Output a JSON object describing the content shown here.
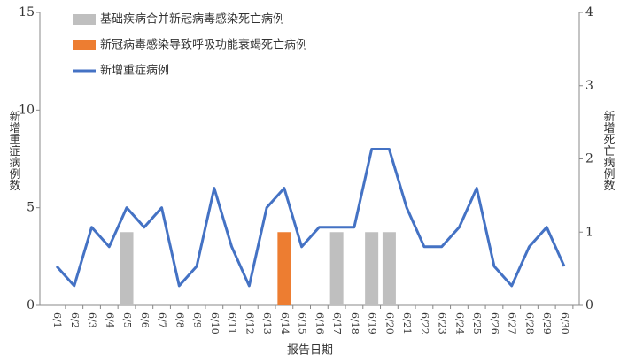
{
  "chart_data": {
    "type": "bar-line",
    "xlabel": "报告日期",
    "ylabel": "新增重症病例数",
    "y2label": "新增死亡病例数",
    "categories": [
      "6/1",
      "6/2",
      "6/3",
      "6/4",
      "6/5",
      "6/6",
      "6/7",
      "6/8",
      "6/9",
      "6/10",
      "6/11",
      "6/12",
      "6/13",
      "6/14",
      "6/15",
      "6/16",
      "6/17",
      "6/18",
      "6/19",
      "6/20",
      "6/21",
      "6/22",
      "6/23",
      "6/24",
      "6/25",
      "6/26",
      "6/27",
      "6/28",
      "6/29",
      "6/30"
    ],
    "series": [
      {
        "name": "基础疾病合并新冠病毒感染死亡病例",
        "type": "bar",
        "axis": "y2",
        "color": "#bfbfbf",
        "values": [
          0,
          0,
          0,
          0,
          1,
          0,
          0,
          0,
          0,
          0,
          0,
          0,
          0,
          0,
          0,
          0,
          1,
          0,
          1,
          1,
          0,
          0,
          0,
          0,
          0,
          0,
          0,
          0,
          0,
          0
        ]
      },
      {
        "name": "新冠病毒感染导致呼吸功能衰竭死亡病例",
        "type": "bar",
        "axis": "y2",
        "color": "#ed7d31",
        "values": [
          0,
          0,
          0,
          0,
          0,
          0,
          0,
          0,
          0,
          0,
          0,
          0,
          0,
          1,
          0,
          0,
          0,
          0,
          0,
          0,
          0,
          0,
          0,
          0,
          0,
          0,
          0,
          0,
          0,
          0
        ]
      },
      {
        "name": "新增重症病例",
        "type": "line",
        "color": "#4472c4",
        "values": [
          2,
          1,
          4,
          3,
          5,
          4,
          5,
          1,
          2,
          6,
          3,
          1,
          5,
          6,
          3,
          4,
          4,
          4,
          8,
          8,
          5,
          3,
          3,
          4,
          6,
          2,
          1,
          3,
          4,
          2
        ]
      }
    ],
    "ylim": [
      0,
      15
    ],
    "yticks": [
      0,
      5,
      10,
      15
    ],
    "y2lim": [
      0,
      4
    ],
    "y2ticks": [
      0,
      1,
      2,
      3,
      4
    ],
    "legend": "top-left"
  }
}
